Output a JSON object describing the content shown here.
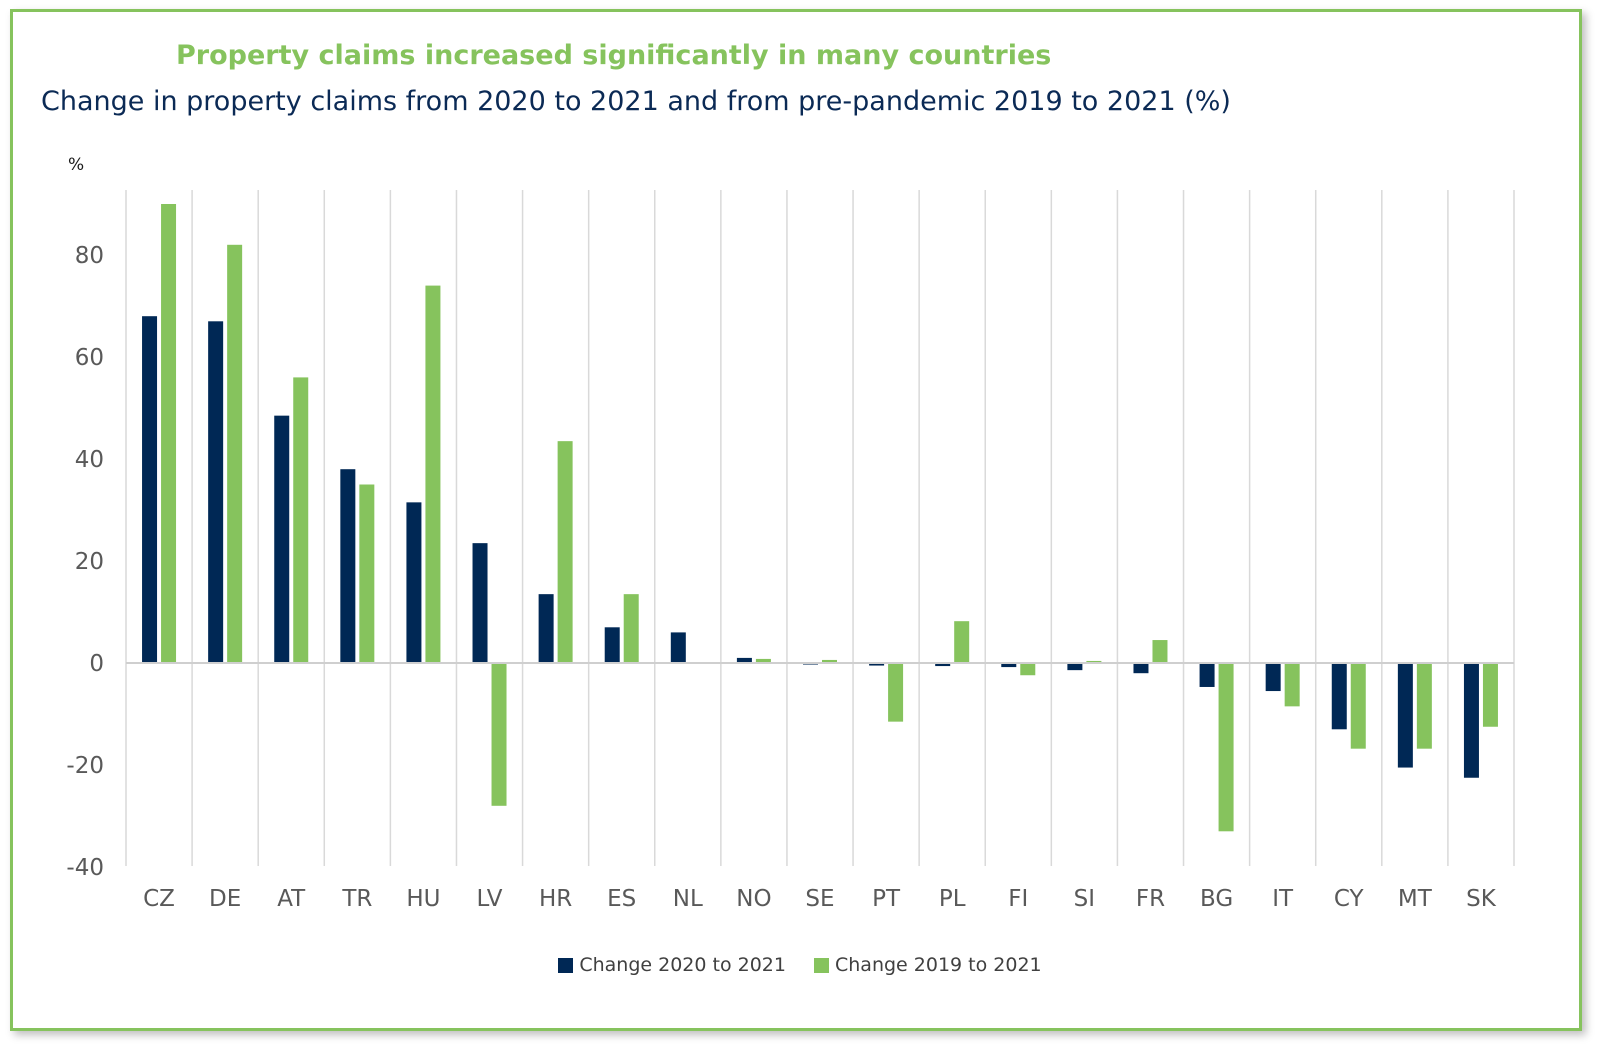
{
  "chart_data": {
    "type": "bar",
    "title": "Property claims increased significantly in many countries",
    "subtitle": "Change in property claims from 2020 to 2021 and from pre-pandemic 2019 to 2021 (%)",
    "ylabel": "%",
    "ylim": [
      -40,
      92
    ],
    "yticks": [
      -40,
      -20,
      0,
      20,
      40,
      60,
      80
    ],
    "grid": "vertical",
    "legend": "bottom-center",
    "categories": [
      "CZ",
      "DE",
      "AT",
      "TR",
      "HU",
      "LV",
      "HR",
      "ES",
      "NL",
      "NO",
      "SE",
      "PT",
      "PL",
      "FI",
      "SI",
      "FR",
      "BG",
      "IT",
      "CY",
      "MT",
      "SK"
    ],
    "series": [
      {
        "name": "Change 2020 to 2021",
        "color": "#002855",
        "values": [
          68,
          67,
          48.5,
          38,
          31.5,
          23.5,
          13.5,
          7,
          6,
          1,
          -0.3,
          -0.5,
          -0.6,
          -0.8,
          -1.4,
          -2,
          -4.7,
          -5.5,
          -13,
          -20.5,
          -22.5
        ]
      },
      {
        "name": "Change 2019 to 2021",
        "color": "#86c35d",
        "values": [
          90,
          82,
          56,
          35,
          74,
          -28,
          43.5,
          13.5,
          0,
          0.8,
          0.6,
          -11.5,
          8.2,
          -2.4,
          0.4,
          4.5,
          -33,
          -8.5,
          -16.8,
          -16.8,
          -12.5
        ]
      }
    ]
  }
}
